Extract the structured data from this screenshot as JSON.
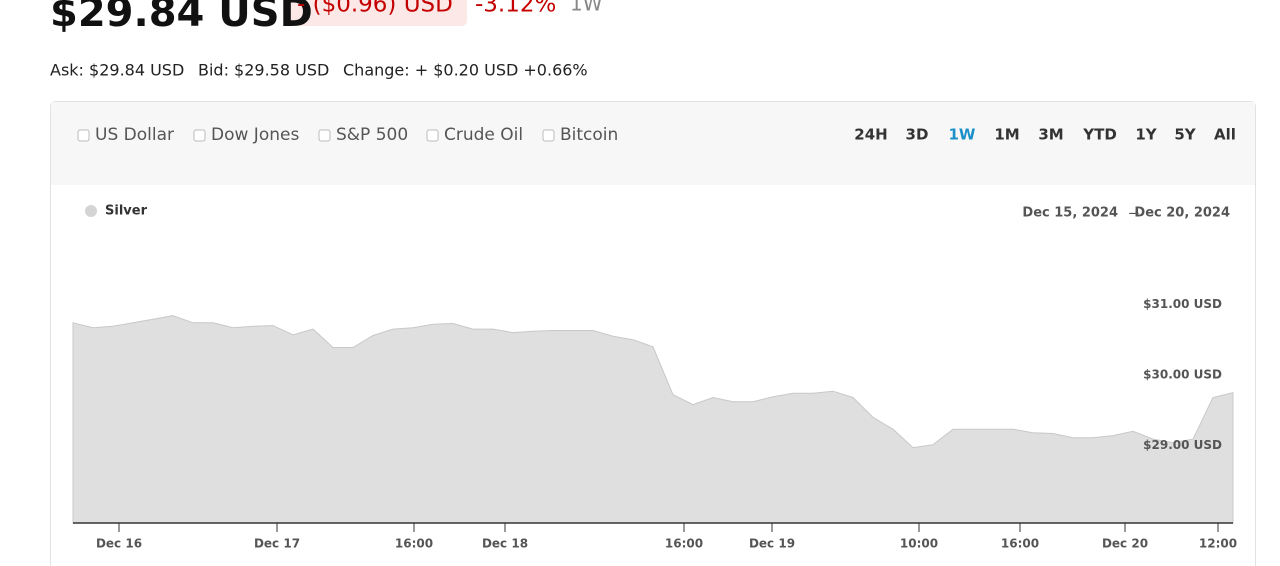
{
  "header": {
    "price": "$29.84 USD",
    "change": "- ($0.96) USD",
    "change_pct": "-3.12%",
    "period": "1W",
    "ask": "Ask: $29.84 USD",
    "bid": "Bid: $29.58 USD",
    "day_change": "Change: + $0.20 USD +0.66%"
  },
  "compare": [
    "US Dollar",
    "Dow Jones",
    "S&P 500",
    "Crude Oil",
    "Bitcoin"
  ],
  "ranges": [
    "24H",
    "3D",
    "1W",
    "1M",
    "3M",
    "YTD",
    "1Y",
    "5Y",
    "All"
  ],
  "active_range": 2,
  "chart_data": {
    "type": "area",
    "date_from": "Dec 15, 2024",
    "date_arrow": "→",
    "date_to": "Dec 20, 2024",
    "series": [
      {
        "name": "Silver",
        "color": "#d4d4d4",
        "values": [
          30.74,
          30.67,
          30.69,
          30.74,
          30.79,
          30.84,
          30.74,
          30.74,
          30.67,
          30.69,
          30.7,
          30.57,
          30.65,
          30.39,
          30.39,
          30.56,
          30.65,
          30.67,
          30.72,
          30.73,
          30.65,
          30.65,
          30.6,
          30.62,
          30.63,
          30.63,
          30.63,
          30.55,
          30.5,
          30.4,
          29.72,
          29.58,
          29.68,
          29.62,
          29.62,
          29.69,
          29.74,
          29.74,
          29.77,
          29.68,
          29.4,
          29.23,
          28.97,
          29.01,
          29.23,
          29.23,
          29.23,
          29.23,
          29.18,
          29.17,
          29.11,
          29.11,
          29.14,
          29.2,
          29.09,
          29.04,
          29.09,
          29.68,
          29.75
        ]
      }
    ],
    "xlim": [
      0,
      58
    ],
    "xticks": [
      {
        "value": 2.3,
        "label": "Dec 16"
      },
      {
        "value": 10.2,
        "label": "Dec 17"
      },
      {
        "value": 17.05,
        "label": "16:00"
      },
      {
        "value": 21.6,
        "label": "Dec 18"
      },
      {
        "value": 30.55,
        "label": "16:00"
      },
      {
        "value": 34.95,
        "label": "Dec 19"
      },
      {
        "value": 42.3,
        "label": "10:00"
      },
      {
        "value": 47.35,
        "label": "16:00"
      },
      {
        "value": 52.6,
        "label": "Dec 20"
      },
      {
        "value": 57.25,
        "label": "12:00"
      }
    ],
    "ylim": [
      27.9,
      31.9
    ],
    "yticks": [
      {
        "value": 29,
        "label": "$29.00 USD"
      },
      {
        "value": 30,
        "label": "$30.00 USD"
      },
      {
        "value": 31,
        "label": "$31.00 USD"
      }
    ]
  }
}
